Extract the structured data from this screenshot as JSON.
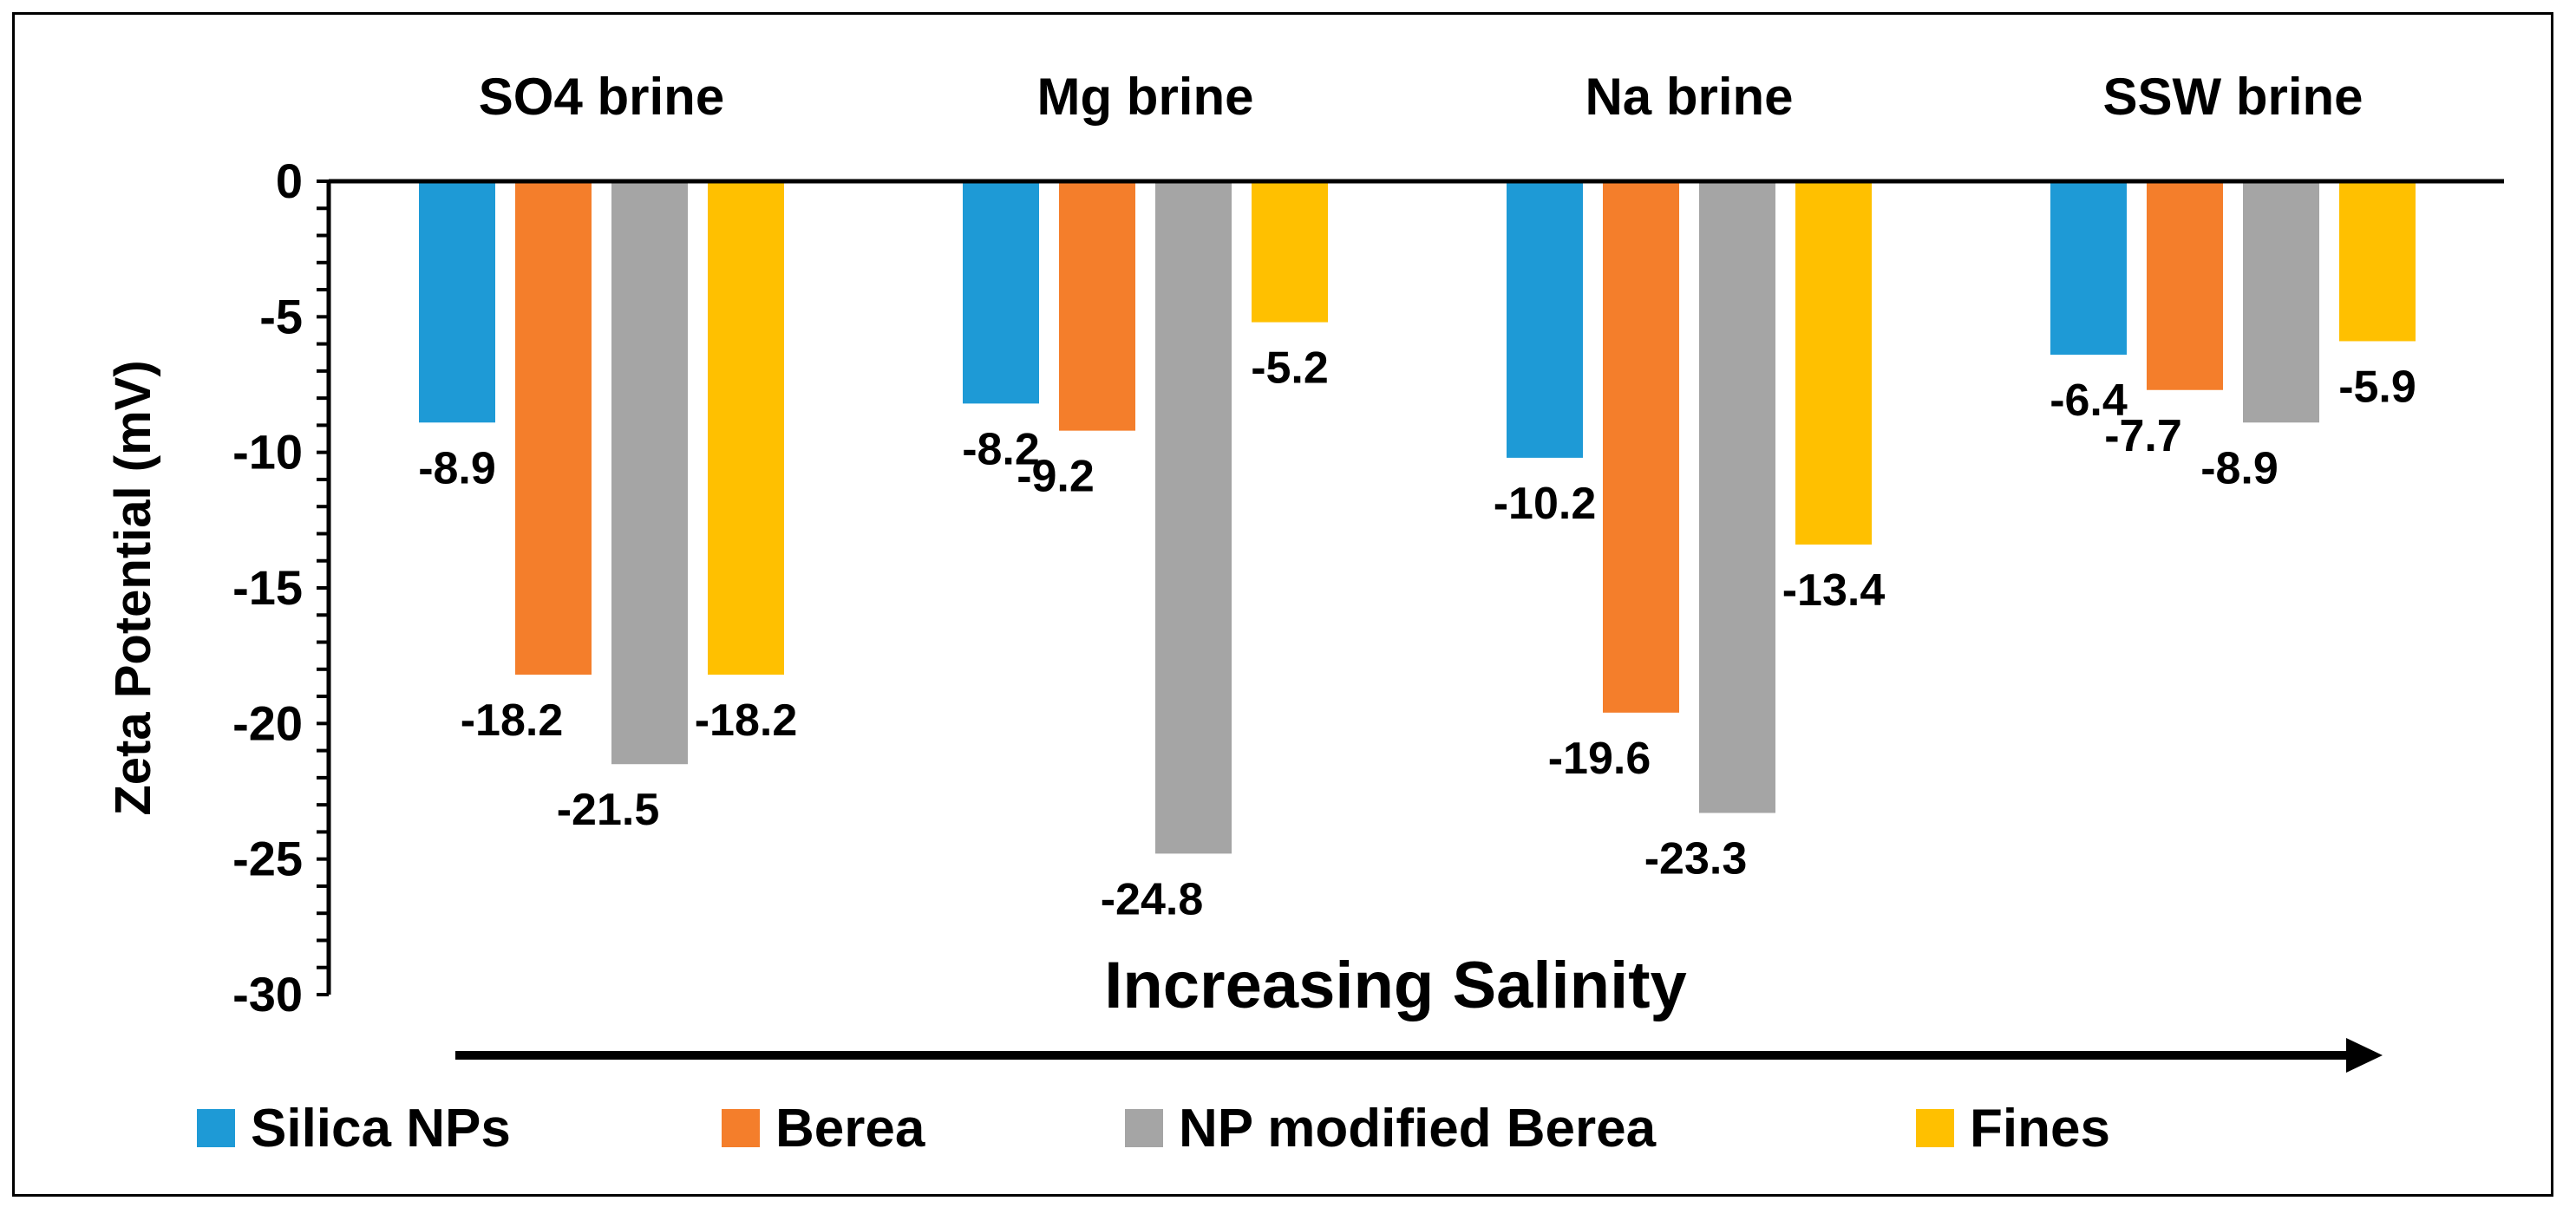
{
  "chart_data": {
    "type": "bar",
    "title": "",
    "categories": [
      "SO4 brine",
      "Mg brine",
      "Na brine",
      "SSW brine"
    ],
    "series": [
      {
        "name": "Silica NPs",
        "color": "#1E9AD6",
        "values": [
          -8.9,
          -8.2,
          -10.2,
          -6.4
        ]
      },
      {
        "name": "Berea",
        "color": "#F47E2B",
        "values": [
          -18.2,
          -9.2,
          -19.6,
          -7.7
        ]
      },
      {
        "name": "NP modified Berea",
        "color": "#A5A5A5",
        "values": [
          -21.5,
          -24.8,
          -23.3,
          -8.9
        ]
      },
      {
        "name": "Fines",
        "color": "#FFC000",
        "values": [
          -18.2,
          -5.2,
          -13.4,
          -5.9
        ]
      }
    ],
    "ylabel": "Zeta Potential (mV)",
    "xlabel": "Increasing Salinity",
    "ylim": [
      -30,
      0
    ],
    "yticks": [
      0,
      -5,
      -10,
      -15,
      -20,
      -25,
      -30
    ],
    "data_labels": [
      [
        "-8.9",
        "-8.2",
        "-10.2",
        "-6.4"
      ],
      [
        "-18.2",
        "-9.2",
        "-19.6",
        "-7.7"
      ],
      [
        "-21.5",
        "-24.8",
        "-23.3",
        "-8.9"
      ],
      [
        "-18.2",
        "-5.2",
        "-13.4",
        "-5.9"
      ]
    ],
    "legend_position": "bottom",
    "grid": false
  }
}
